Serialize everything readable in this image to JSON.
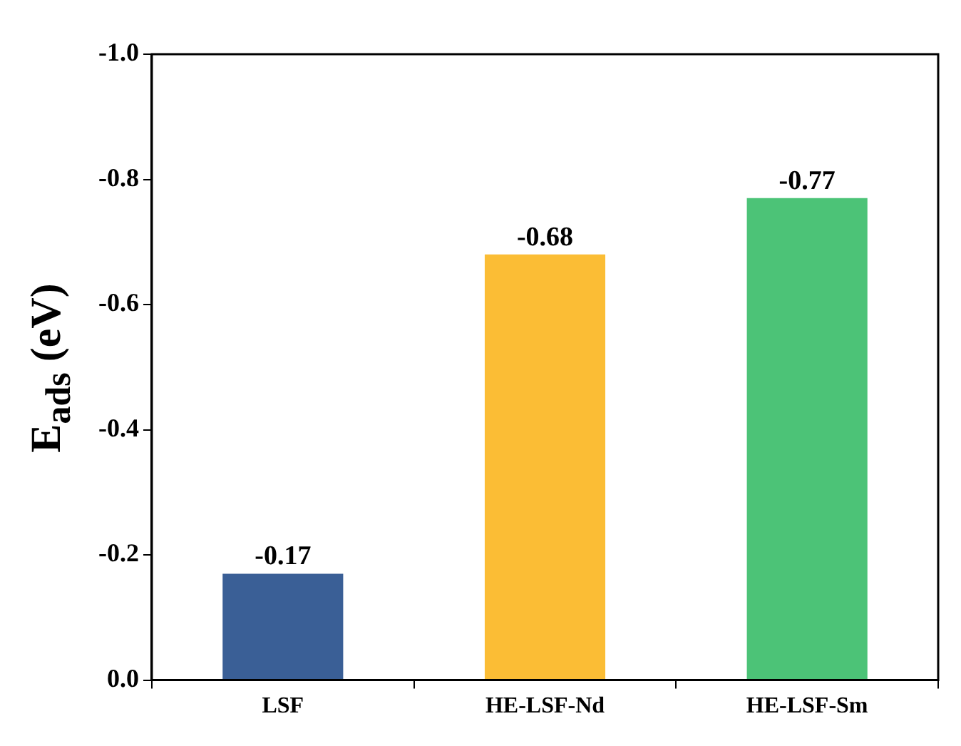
{
  "chart_data": {
    "type": "bar",
    "ylabel": "E$_{ads}$ (eV)",
    "categories": [
      "LSF",
      "HE-LSF-Nd",
      "HE-LSF-Sm"
    ],
    "values": [
      -0.17,
      -0.68,
      -0.77
    ],
    "colors": [
      "#3a5f96",
      "#fbbd35",
      "#4cc377"
    ],
    "ylim": [
      0,
      -1.0
    ],
    "yticks": [
      {
        "value": 0,
        "label": "0.0"
      },
      -0.2,
      -0.4,
      -0.6,
      -0.8,
      {
        "value": -1.0,
        "label": "-1.0"
      }
    ],
    "data_labels": true,
    "grid": false,
    "legend": false
  }
}
